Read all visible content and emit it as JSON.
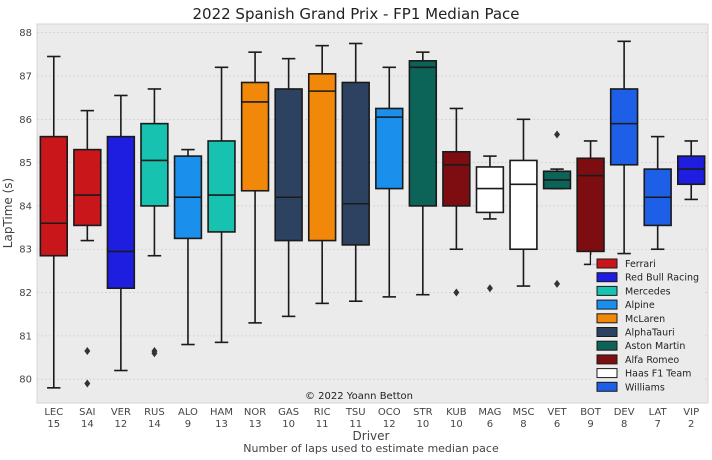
{
  "chart_data": {
    "type": "box",
    "title": "2022 Spanish Grand Prix - FP1 Median Pace",
    "xlabel": "Driver",
    "xlabel2": "Number of laps used to estimate median pace",
    "ylabel": "LapTime (s)",
    "ylim": [
      79.45,
      88.2
    ],
    "yticks": [
      80,
      81,
      82,
      83,
      84,
      85,
      86,
      87,
      88
    ],
    "grid": true,
    "legend_position": "right",
    "watermark": "© 2022 Yoann Betton",
    "legend": [
      {
        "name": "Ferrari",
        "color": "#c8161a"
      },
      {
        "name": "Red Bull Racing",
        "color": "#1d1ee0"
      },
      {
        "name": "Mercedes",
        "color": "#17c2b0"
      },
      {
        "name": "Alpine",
        "color": "#1a8fec"
      },
      {
        "name": "McLaren",
        "color": "#f2880a"
      },
      {
        "name": "AlphaTauri",
        "color": "#2d4260"
      },
      {
        "name": "Aston Martin",
        "color": "#0c6357"
      },
      {
        "name": "Alfa Romeo",
        "color": "#7e0d12"
      },
      {
        "name": "Haas F1 Team",
        "color": "#ffffff"
      },
      {
        "name": "Williams",
        "color": "#1e5fe8"
      }
    ],
    "drivers": [
      {
        "driver": "LEC",
        "laps": "15",
        "team": "Ferrari",
        "color": "#c8161a",
        "min": 79.8,
        "q1": 82.85,
        "median": 83.6,
        "q3": 85.6,
        "max": 87.45,
        "outliers": []
      },
      {
        "driver": "SAI",
        "laps": "14",
        "team": "Ferrari",
        "color": "#c8161a",
        "min": 83.2,
        "q1": 83.55,
        "median": 84.25,
        "q3": 85.3,
        "max": 86.2,
        "outliers": [
          80.65,
          79.9
        ]
      },
      {
        "driver": "VER",
        "laps": "12",
        "team": "Red Bull Racing",
        "color": "#1d1ee0",
        "min": 80.2,
        "q1": 82.1,
        "median": 82.95,
        "q3": 85.6,
        "max": 86.55,
        "outliers": []
      },
      {
        "driver": "RUS",
        "laps": "14",
        "team": "Mercedes",
        "color": "#17c2b0",
        "min": 82.85,
        "q1": 84.0,
        "median": 85.05,
        "q3": 85.9,
        "max": 86.7,
        "outliers": [
          80.65,
          80.6
        ]
      },
      {
        "driver": "ALO",
        "laps": "9",
        "team": "Alpine",
        "color": "#1a8fec",
        "min": 80.8,
        "q1": 83.25,
        "median": 84.2,
        "q3": 85.15,
        "max": 85.3,
        "outliers": []
      },
      {
        "driver": "HAM",
        "laps": "13",
        "team": "Mercedes",
        "color": "#17c2b0",
        "min": 80.85,
        "q1": 83.4,
        "median": 84.25,
        "q3": 85.5,
        "max": 87.2,
        "outliers": []
      },
      {
        "driver": "NOR",
        "laps": "13",
        "team": "McLaren",
        "color": "#f2880a",
        "min": 81.3,
        "q1": 84.35,
        "median": 86.4,
        "q3": 86.85,
        "max": 87.55,
        "outliers": []
      },
      {
        "driver": "GAS",
        "laps": "10",
        "team": "AlphaTauri",
        "color": "#2d4260",
        "min": 81.45,
        "q1": 83.2,
        "median": 84.2,
        "q3": 86.7,
        "max": 87.4,
        "outliers": []
      },
      {
        "driver": "RIC",
        "laps": "11",
        "team": "McLaren",
        "color": "#f2880a",
        "min": 81.75,
        "q1": 83.2,
        "median": 86.65,
        "q3": 87.05,
        "max": 87.7,
        "outliers": []
      },
      {
        "driver": "TSU",
        "laps": "11",
        "team": "AlphaTauri",
        "color": "#2d4260",
        "min": 81.8,
        "q1": 83.1,
        "median": 84.05,
        "q3": 86.85,
        "max": 87.75,
        "outliers": []
      },
      {
        "driver": "OCO",
        "laps": "12",
        "team": "Alpine",
        "color": "#1a8fec",
        "min": 81.9,
        "q1": 84.4,
        "median": 86.05,
        "q3": 86.25,
        "max": 87.2,
        "outliers": []
      },
      {
        "driver": "STR",
        "laps": "10",
        "team": "Aston Martin",
        "color": "#0c6357",
        "min": 81.95,
        "q1": 84.0,
        "median": 87.2,
        "q3": 87.35,
        "max": 87.55,
        "outliers": []
      },
      {
        "driver": "KUB",
        "laps": "10",
        "team": "Alfa Romeo",
        "color": "#7e0d12",
        "min": 83.0,
        "q1": 84.0,
        "median": 84.95,
        "q3": 85.25,
        "max": 86.25,
        "outliers": [
          82.0
        ]
      },
      {
        "driver": "MAG",
        "laps": "6",
        "team": "Haas F1 Team",
        "color": "#ffffff",
        "min": 83.7,
        "q1": 83.85,
        "median": 84.4,
        "q3": 84.9,
        "max": 85.15,
        "outliers": [
          82.1
        ]
      },
      {
        "driver": "MSC",
        "laps": "8",
        "team": "Haas F1 Team",
        "color": "#ffffff",
        "min": 82.15,
        "q1": 83.0,
        "median": 84.5,
        "q3": 85.05,
        "max": 86.0,
        "outliers": []
      },
      {
        "driver": "VET",
        "laps": "6",
        "team": "Aston Martin",
        "color": "#0c6357",
        "min": 84.4,
        "q1": 84.4,
        "median": 84.6,
        "q3": 84.8,
        "max": 84.85,
        "outliers": [
          85.65,
          82.2
        ]
      },
      {
        "driver": "BOT",
        "laps": "9",
        "team": "Alfa Romeo",
        "color": "#7e0d12",
        "min": 82.65,
        "q1": 82.95,
        "median": 84.7,
        "q3": 85.1,
        "max": 85.5,
        "outliers": []
      },
      {
        "driver": "DEV",
        "laps": "8",
        "team": "Williams",
        "color": "#1e5fe8",
        "min": 82.9,
        "q1": 84.95,
        "median": 85.9,
        "q3": 86.7,
        "max": 87.8,
        "outliers": []
      },
      {
        "driver": "LAT",
        "laps": "7",
        "team": "Williams",
        "color": "#1e5fe8",
        "min": 83.0,
        "q1": 83.55,
        "median": 84.2,
        "q3": 84.85,
        "max": 85.6,
        "outliers": []
      },
      {
        "driver": "VIP",
        "laps": "2",
        "team": "Red Bull Racing",
        "color": "#1d1ee0",
        "min": 84.15,
        "q1": 84.5,
        "median": 84.85,
        "q3": 85.15,
        "max": 85.5,
        "outliers": []
      }
    ]
  }
}
